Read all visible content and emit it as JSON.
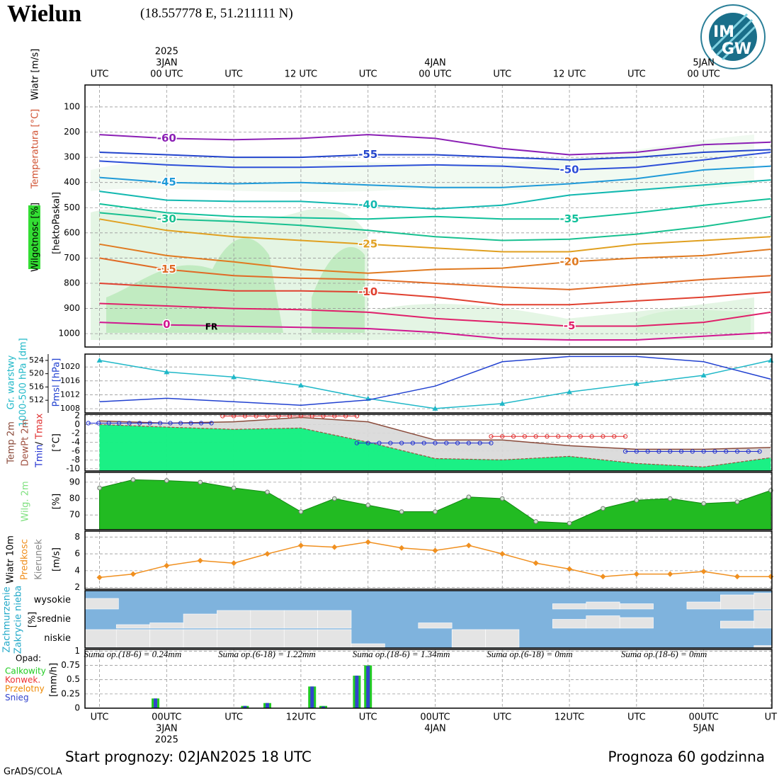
{
  "header": {
    "title": "Wielun",
    "coords": "(18.557778 E, 51.211111 N)"
  },
  "logo": {
    "top": "IM",
    "bottom": "GW"
  },
  "time_axis": {
    "xlim": [
      -1.3,
      60.1
    ],
    "top_ticks": [
      {
        "value": 0,
        "label": "UTC"
      },
      {
        "value": 6,
        "label": "00 UTC"
      },
      {
        "value": 12,
        "label": "UTC"
      },
      {
        "value": 18,
        "label": "12 UTC"
      },
      {
        "value": 24,
        "label": "UTC"
      },
      {
        "value": 30,
        "label": "00 UTC"
      },
      {
        "value": 36,
        "label": "UTC"
      },
      {
        "value": 42,
        "label": "12 UTC"
      },
      {
        "value": 48,
        "label": "UTC"
      },
      {
        "value": 54,
        "label": "00 UTC"
      }
    ],
    "top_dates": [
      {
        "value": 6,
        "label": "3JAN"
      },
      {
        "value": 30,
        "label": "4JAN"
      },
      {
        "value": 54,
        "label": "5JAN"
      }
    ],
    "top_year": {
      "value": 6,
      "label": "2025"
    },
    "bottom_ticks": [
      {
        "value": 0,
        "label": "UTC"
      },
      {
        "value": 6,
        "label": "00UTC"
      },
      {
        "value": 12,
        "label": "UTC"
      },
      {
        "value": 18,
        "label": "12UTC"
      },
      {
        "value": 24,
        "label": "UTC"
      },
      {
        "value": 30,
        "label": "00UTC"
      },
      {
        "value": 36,
        "label": "UTC"
      },
      {
        "value": 42,
        "label": "12UTC"
      },
      {
        "value": 48,
        "label": "UTC"
      },
      {
        "value": 54,
        "label": "00UTC"
      },
      {
        "value": 60,
        "label": "UT"
      }
    ],
    "bottom_dates": [
      {
        "value": 6,
        "label": "3JAN"
      },
      {
        "value": 30,
        "label": "4JAN"
      },
      {
        "value": 54,
        "label": "5JAN"
      }
    ],
    "bottom_year": {
      "value": 6,
      "label": "2025"
    }
  },
  "chart_data": [
    {
      "type": "contour",
      "side_labels": [
        "Wiatr [m/s]",
        "Temperatura [°C]",
        "Wilgotnosc [%]"
      ],
      "y_label": "[hektoPaskal]",
      "ylim": [
        1053,
        13
      ],
      "yticks": [
        100,
        200,
        300,
        400,
        500,
        600,
        700,
        800,
        900,
        1000
      ],
      "grid": true,
      "annotation": "FR",
      "x": [
        0,
        6,
        12,
        18,
        24,
        30,
        36,
        42,
        48,
        54,
        60
      ],
      "series": [
        {
          "name": "-60",
          "color": "#8b1fb5",
          "values": [
            210,
            225,
            230,
            225,
            210,
            225,
            265,
            290,
            280,
            250,
            240
          ]
        },
        {
          "name": "-55",
          "color": "#2244cc",
          "values": [
            280,
            290,
            300,
            300,
            290,
            290,
            300,
            310,
            300,
            280,
            270
          ]
        },
        {
          "name": "-50",
          "color": "#2d4fd8",
          "values": [
            315,
            330,
            340,
            340,
            335,
            330,
            335,
            350,
            340,
            310,
            280
          ]
        },
        {
          "name": "-45",
          "color": "#1f9ad8",
          "values": [
            380,
            400,
            405,
            400,
            410,
            420,
            420,
            405,
            385,
            350,
            335
          ]
        },
        {
          "name": "-40",
          "color": "#12b8b0",
          "values": [
            435,
            470,
            475,
            475,
            490,
            505,
            490,
            450,
            430,
            410,
            390
          ]
        },
        {
          "name": "-35",
          "color": "#10c09a",
          "values": [
            485,
            520,
            535,
            540,
            545,
            535,
            545,
            545,
            520,
            490,
            465
          ]
        },
        {
          "name": "-30",
          "color": "#18c090",
          "values": [
            520,
            545,
            555,
            570,
            590,
            615,
            630,
            625,
            605,
            575,
            535
          ]
        },
        {
          "name": "-25",
          "color": "#e0a020",
          "values": [
            545,
            590,
            615,
            630,
            645,
            660,
            675,
            675,
            645,
            630,
            615
          ]
        },
        {
          "name": "-20",
          "color": "#e07a20",
          "values": [
            645,
            690,
            715,
            745,
            760,
            745,
            740,
            715,
            700,
            690,
            665
          ]
        },
        {
          "name": "-15",
          "color": "#e06a25",
          "values": [
            700,
            745,
            770,
            780,
            785,
            800,
            815,
            825,
            805,
            785,
            770
          ]
        },
        {
          "name": "-10",
          "color": "#e04030",
          "values": [
            800,
            815,
            830,
            830,
            835,
            855,
            885,
            885,
            870,
            855,
            835
          ]
        },
        {
          "name": "-5",
          "color": "#e0206a",
          "values": [
            880,
            890,
            900,
            905,
            915,
            940,
            955,
            970,
            970,
            955,
            915
          ]
        },
        {
          "name": "0",
          "color": "#d01890",
          "values": [
            955,
            965,
            970,
            975,
            980,
            995,
            1020,
            1025,
            1025,
            1010,
            995
          ]
        }
      ]
    },
    {
      "type": "line",
      "y_label": "1000-500 hPa [dm]",
      "ylim": [
        508.2,
        525.9
      ],
      "yticks": [
        512,
        516,
        520,
        524
      ],
      "y2lim": [
        1006.8,
        1023.7
      ],
      "y2ticks": [
        1008,
        1012,
        1016,
        1020
      ],
      "x": [
        0,
        6,
        12,
        18,
        24,
        30,
        36,
        42,
        48,
        54,
        60
      ],
      "series": [
        {
          "name": "Gr. warstwy",
          "color": "#20b8c8",
          "values": [
            524,
            520.5,
            519,
            516.5,
            512.5,
            509.5,
            511,
            514.5,
            517,
            519.5,
            524
          ]
        },
        {
          "name": "Pmsl [hPa]",
          "color": "#2040d0",
          "axis": "y2",
          "values": [
            1010,
            1011,
            1010,
            1009,
            1010.5,
            1014.5,
            1021.5,
            1023,
            1023,
            1021.5,
            1016.5
          ]
        }
      ]
    },
    {
      "type": "temperature",
      "y_label": "[°C]",
      "ylim": [
        -10.5,
        2.3
      ],
      "yticks": [
        2,
        0,
        -2,
        -4,
        -6,
        -8,
        -10
      ],
      "x": [
        0,
        6,
        12,
        18,
        24,
        30,
        36,
        42,
        48,
        54,
        60
      ],
      "series": [
        {
          "name": "Temp 2m",
          "color": "#8a4a3a",
          "values": [
            0.8,
            0.3,
            0.6,
            1.6,
            0.6,
            -3.5,
            -3.5,
            -4.8,
            -5.6,
            -5.6,
            -5.2
          ]
        },
        {
          "name": "DewPt 2m",
          "color": "#a05040",
          "values": [
            0,
            -0.6,
            -1.1,
            -0.8,
            -4,
            -7.7,
            -8,
            -7.2,
            -8.8,
            -9.6,
            -7.5
          ]
        }
      ],
      "tmin": {
        "name": "Tmin",
        "color": "#2030d0",
        "periods": [
          {
            "x": [
              -1,
              10
            ],
            "value": 0.3
          },
          {
            "x": [
              23,
              35
            ],
            "value": -4.2
          },
          {
            "x": [
              47,
              59
            ],
            "value": -6.1
          }
        ]
      },
      "separator": "/",
      "tmax": {
        "name": "Tmax",
        "color": "#e03030",
        "periods": [
          {
            "x": [
              11,
              23
            ],
            "value": 1.9
          },
          {
            "x": [
              35,
              47
            ],
            "value": -2.7
          }
        ]
      }
    },
    {
      "type": "area",
      "name": "Wilg. 2m",
      "color": "#22bb22",
      "y_label": "[%]",
      "ylim": [
        61,
        96
      ],
      "yticks": [
        70,
        80,
        90
      ],
      "x": [
        0,
        3,
        6,
        9,
        12,
        15,
        18,
        21,
        24,
        27,
        30,
        33,
        36,
        39,
        42,
        45,
        48,
        51,
        54,
        57,
        60
      ],
      "values": [
        86.5,
        91.5,
        91,
        90,
        86.5,
        84,
        72,
        80,
        76,
        72,
        72,
        81,
        80,
        66,
        65,
        74,
        79,
        80,
        77,
        78,
        85
      ]
    },
    {
      "type": "wind",
      "labels": [
        "Wiatr 10m",
        "Predkosc",
        "Kierunek"
      ],
      "y_label": "[m/s]",
      "color": "#f09020",
      "ylim": [
        1.8,
        8.7
      ],
      "yticks": [
        2,
        4,
        6,
        8
      ],
      "x": [
        0,
        3,
        6,
        9,
        12,
        15,
        18,
        21,
        24,
        27,
        30,
        33,
        36,
        39,
        42,
        45,
        48,
        51,
        54,
        57,
        60
      ],
      "values": [
        3.2,
        3.6,
        4.6,
        5.2,
        4.9,
        6,
        7,
        6.8,
        7.4,
        6.7,
        6.4,
        7,
        6,
        4.9,
        4.2,
        3.3,
        3.6,
        3.6,
        3.9,
        3.3,
        3.3
      ]
    },
    {
      "type": "cloud",
      "labels": [
        "Zachmurzenie",
        "Zakrycie nieba"
      ],
      "y_label": "[%]",
      "ylim": [
        0,
        100
      ],
      "x": [
        0,
        3,
        6,
        9,
        12,
        15,
        18,
        21,
        24,
        27,
        30,
        33,
        36,
        39,
        42,
        45,
        48,
        51,
        54,
        57,
        60
      ],
      "series": [
        {
          "name": "wysokie",
          "color": "#e4e4e4",
          "values": [
            60,
            0,
            0,
            0,
            0,
            0,
            0,
            0,
            0,
            0,
            0,
            0,
            0,
            0,
            30,
            40,
            30,
            0,
            40,
            80,
            90
          ]
        },
        {
          "name": "srednie",
          "color": "#e4e4e4",
          "values": [
            0,
            20,
            30,
            80,
            100,
            100,
            100,
            100,
            0,
            0,
            30,
            0,
            0,
            0,
            50,
            70,
            60,
            0,
            0,
            40,
            100
          ]
        },
        {
          "name": "niskie",
          "color": "#e4e4e4",
          "values": [
            100,
            100,
            100,
            100,
            100,
            100,
            100,
            100,
            20,
            0,
            0,
            100,
            100,
            0,
            0,
            0,
            0,
            0,
            0,
            0,
            10
          ]
        }
      ]
    },
    {
      "type": "bar",
      "title": "Opad:",
      "y_label": "[mm/h]",
      "ylim": [
        0,
        1.03
      ],
      "yticks": [
        0,
        0.25,
        0.5,
        0.75,
        1
      ],
      "x": [
        5,
        13,
        15,
        19,
        20,
        23,
        24
      ],
      "series": [
        {
          "name": "Calkowity",
          "color": "#22cc22",
          "values": [
            0.17,
            0.04,
            0.09,
            0.38,
            0.04,
            0.57,
            0.75
          ]
        },
        {
          "name": "Konwek.",
          "color": "#ee3333",
          "values": [
            0,
            0,
            0,
            0,
            0,
            0,
            0
          ]
        },
        {
          "name": "Przelotny",
          "color": "#ee8800",
          "values": [
            0,
            0,
            0,
            0,
            0,
            0,
            0
          ]
        },
        {
          "name": "Snieg",
          "color": "#3344cc",
          "values": [
            0.17,
            0.04,
            0.09,
            0.38,
            0.03,
            0.57,
            0.74
          ]
        }
      ],
      "sums": [
        "Suma op.(18-6) = 0.24mm",
        "Suma op.(6-18) = 1.22mm",
        "Suma op.(18-6) = 1.34mm",
        "Suma op.(6-18) = 0mm",
        "Suma op.(18-6) = 0mm"
      ]
    }
  ],
  "footer": {
    "start": "Start prognozy: 02JAN2025 18 UTC",
    "forecast": "Prognoza 60 godzinna",
    "credit": "GrADS/COLA"
  }
}
